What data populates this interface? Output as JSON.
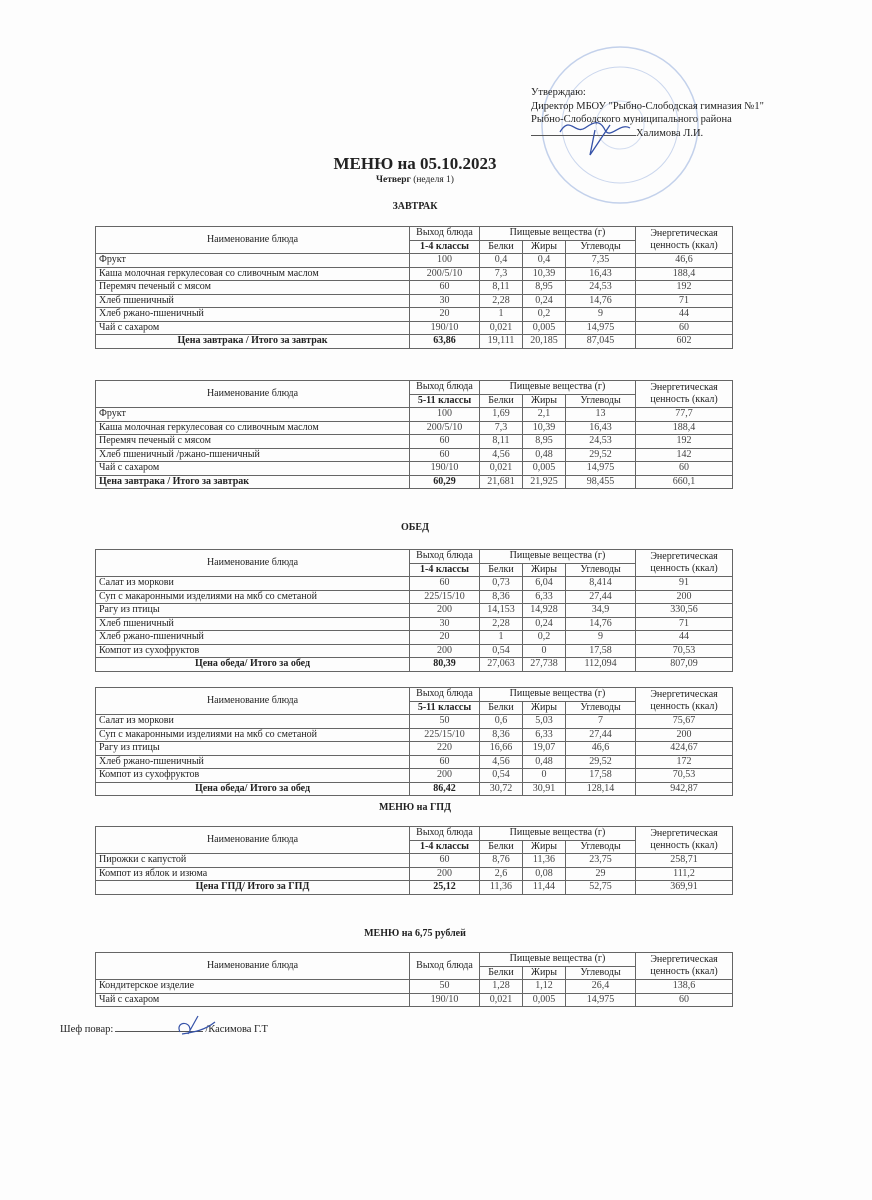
{
  "approval": {
    "lines": [
      "Утверждаю:",
      "Директор МБОУ \"Рыбно-Слободская гимназия №1\"",
      "Рыбно-Слободского муниципального района"
    ],
    "signer": "Халимова  Л.И."
  },
  "title": "МЕНЮ на 05.10.2023",
  "subtitle_day": "Четверг",
  "subtitle_week": "(неделя 1)",
  "sections": {
    "breakfast": "ЗАВТРАК",
    "lunch": "ОБЕД",
    "gpd": "МЕНЮ на ГПД",
    "menu675": "МЕНЮ на 6,75 рублей"
  },
  "headers": {
    "name": "Наименование блюда",
    "yield": "Выход блюда",
    "nutrients": "Пищевые вещества (г)",
    "protein": "Белки",
    "fat": "Жиры",
    "carbs": "Углеводы",
    "energy": "Энергетическая ценность (ккал)"
  },
  "tables": [
    {
      "top": "breakfast-1-4",
      "group": "1-4 классы",
      "rows": [
        [
          "Фрукт",
          "100",
          "0,4",
          "0,4",
          "7,35",
          "46,6"
        ],
        [
          "Каша молочная геркулесовая со сливочным маслом",
          "200/5/10",
          "7,3",
          "10,39",
          "16,43",
          "188,4"
        ],
        [
          "Перемяч печеный с мясом",
          "60",
          "8,11",
          "8,95",
          "24,53",
          "192"
        ],
        [
          "Хлеб пшеничный",
          "30",
          "2,28",
          "0,24",
          "14,76",
          "71"
        ],
        [
          "Хлеб ржано-пшеничный",
          "20",
          "1",
          "0,2",
          "9",
          "44"
        ],
        [
          "Чай с сахаром",
          "190/10",
          "0,021",
          "0,005",
          "14,975",
          "60"
        ]
      ],
      "total": [
        "Цена завтрака / Итого за завтрак",
        "63,86",
        "19,111",
        "20,185",
        "87,045",
        "602"
      ]
    },
    {
      "top": "breakfast-5-11",
      "group": "5-11 классы",
      "rows": [
        [
          "Фрукт",
          "100",
          "1,69",
          "2,1",
          "13",
          "77,7"
        ],
        [
          "Каша молочная геркулесовая со сливочным маслом",
          "200/5/10",
          "7,3",
          "10,39",
          "16,43",
          "188,4"
        ],
        [
          "Перемяч печеный с мясом",
          "60",
          "8,11",
          "8,95",
          "24,53",
          "192"
        ],
        [
          "Хлеб пшеничный /ржано-пшеничный",
          "60",
          "4,56",
          "0,48",
          "29,52",
          "142"
        ],
        [
          "Чай с сахаром",
          "190/10",
          "0,021",
          "0,005",
          "14,975",
          "60"
        ]
      ],
      "total": [
        "Цена завтрака / Итого за завтрак",
        "60,29",
        "21,681",
        "21,925",
        "98,455",
        "660,1"
      ],
      "total_left": true
    },
    {
      "top": "lunch-1-4",
      "group": "1-4 классы",
      "rows": [
        [
          "Салат из моркови",
          "60",
          "0,73",
          "6,04",
          "8,414",
          "91"
        ],
        [
          "Суп с макаронными изделиями на мкб со сметаной",
          "225/15/10",
          "8,36",
          "6,33",
          "27,44",
          "200"
        ],
        [
          "Рагу из птицы",
          "200",
          "14,153",
          "14,928",
          "34,9",
          "330,56"
        ],
        [
          "Хлеб пшеничный",
          "30",
          "2,28",
          "0,24",
          "14,76",
          "71"
        ],
        [
          "Хлеб ржано-пшеничный",
          "20",
          "1",
          "0,2",
          "9",
          "44"
        ],
        [
          "Компот из сухофруктов",
          "200",
          "0,54",
          "0",
          "17,58",
          "70,53"
        ]
      ],
      "total": [
        "Цена обеда/ Итого за обед",
        "80,39",
        "27,063",
        "27,738",
        "112,094",
        "807,09"
      ]
    },
    {
      "top": "lunch-5-11",
      "group": "5-11 классы",
      "rows": [
        [
          "Салат из моркови",
          "50",
          "0,6",
          "5,03",
          "7",
          "75,67"
        ],
        [
          "Суп с макаронными изделиями на мкб со сметаной",
          "225/15/10",
          "8,36",
          "6,33",
          "27,44",
          "200"
        ],
        [
          "Рагу из птицы",
          "220",
          "16,66",
          "19,07",
          "46,6",
          "424,67"
        ],
        [
          "Хлеб ржано-пшеничный",
          "60",
          "4,56",
          "0,48",
          "29,52",
          "172"
        ],
        [
          "Компот из сухофруктов",
          "200",
          "0,54",
          "0",
          "17,58",
          "70,53"
        ]
      ],
      "total": [
        "Цена обеда/ Итого за обед",
        "86,42",
        "30,72",
        "30,91",
        "128,14",
        "942,87"
      ]
    },
    {
      "top": "gpd-1-4",
      "group": "1-4 классы",
      "rows": [
        [
          "Пирожки с капустой",
          "60",
          "8,76",
          "11,36",
          "23,75",
          "258,71"
        ],
        [
          "Компот из яблок и изюма",
          "200",
          "2,6",
          "0,08",
          "29",
          "111,2"
        ]
      ],
      "total": [
        "Цена ГПД/ Итого за ГПД",
        "25,12",
        "11,36",
        "11,44",
        "52,75",
        "369,91"
      ]
    },
    {
      "top": "menu-675",
      "group": null,
      "rows": [
        [
          "Кондитерское изделие",
          "50",
          "1,28",
          "1,12",
          "26,4",
          "138,6"
        ],
        [
          "Чай с сахаром",
          "190/10",
          "0,021",
          "0,005",
          "14,975",
          "60"
        ]
      ],
      "total": null
    }
  ],
  "chef": {
    "label": "Шеф  повар:",
    "name": "/Касимова Г.Т"
  },
  "colors": {
    "stamp": "#8aa6d8",
    "signature": "#3552a8"
  }
}
